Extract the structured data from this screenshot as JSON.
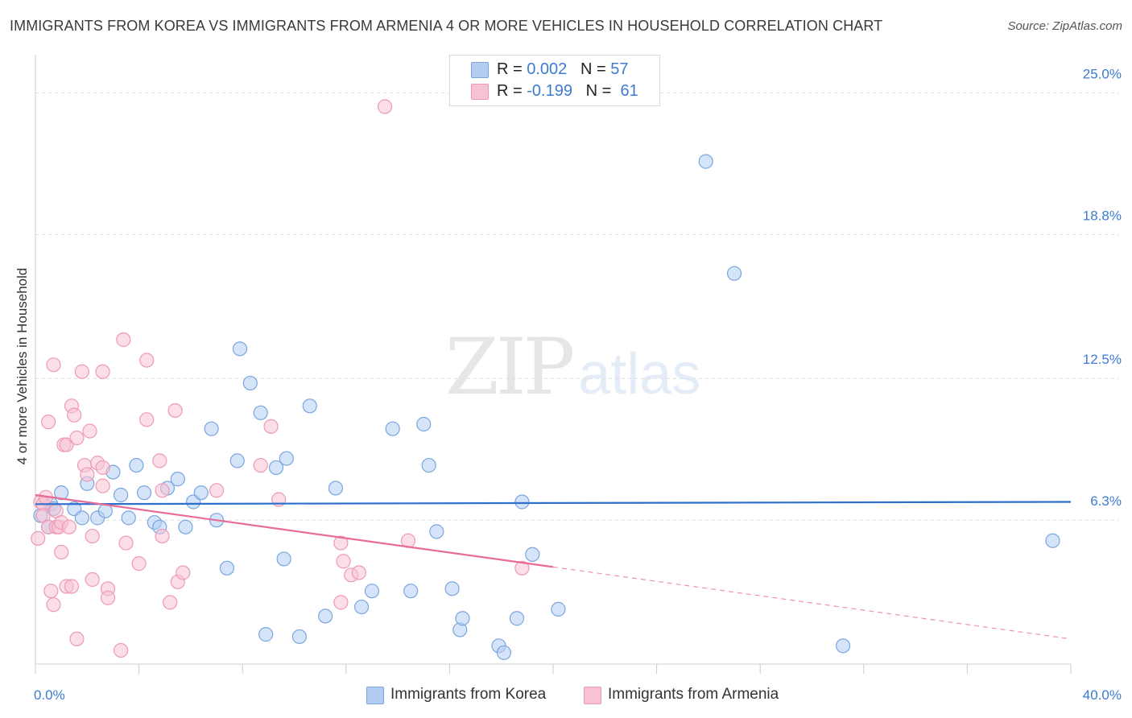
{
  "header": {
    "title": "IMMIGRANTS FROM KOREA VS IMMIGRANTS FROM ARMENIA 4 OR MORE VEHICLES IN HOUSEHOLD CORRELATION CHART",
    "source": "Source: ZipAtlas.com"
  },
  "watermark": {
    "zip": "ZIP",
    "atlas": "atlas"
  },
  "colors": {
    "korea_fill": "#b3cdf2",
    "korea_stroke": "#7aa6e0",
    "korea_line": "#2f6fcc",
    "armenia_fill": "#f7c3d3",
    "armenia_stroke": "#ee9ab5",
    "armenia_line": "#e86b99",
    "tick_text": "#3d7bd1",
    "grid": "#dddddd"
  },
  "legend": {
    "korea": {
      "r_label": "R = ",
      "r_value": "0.002",
      "n_label": "N = ",
      "n_value": "57"
    },
    "armenia": {
      "r_label": "R = ",
      "r_value": "-0.199",
      "n_label": "N = ",
      "n_value": "61"
    }
  },
  "bottom_legend": {
    "korea": "Immigrants from Korea",
    "armenia": "Immigrants from Armenia"
  },
  "chart_data": {
    "type": "scatter",
    "title": "IMMIGRANTS FROM KOREA VS IMMIGRANTS FROM ARMENIA 4 OR MORE VEHICLES IN HOUSEHOLD CORRELATION CHART",
    "xlabel": "",
    "ylabel": "4 or more Vehicles in Household",
    "xlim": [
      0,
      40
    ],
    "ylim": [
      0,
      26.25
    ],
    "x_tick_labels": [
      {
        "value": 0,
        "label": "0.0%"
      },
      {
        "value": 40,
        "label": "40.0%"
      }
    ],
    "y_tick_labels": [
      {
        "value": 6.3,
        "label": "6.3%"
      },
      {
        "value": 12.5,
        "label": "12.5%"
      },
      {
        "value": 18.8,
        "label": "18.8%"
      },
      {
        "value": 25.0,
        "label": "25.0%"
      }
    ],
    "series": [
      {
        "name": "Immigrants from Korea",
        "color": "#b3cdf2",
        "trend": {
          "x": [
            0,
            40
          ],
          "y": [
            7.0,
            7.1
          ],
          "dashed_from": null
        },
        "points": [
          [
            0.2,
            6.5
          ],
          [
            0.5,
            6.0
          ],
          [
            0.6,
            7.0
          ],
          [
            0.7,
            6.8
          ],
          [
            1.0,
            7.5
          ],
          [
            1.5,
            6.8
          ],
          [
            1.8,
            6.4
          ],
          [
            2.0,
            7.9
          ],
          [
            2.4,
            6.4
          ],
          [
            2.7,
            6.7
          ],
          [
            3.0,
            8.4
          ],
          [
            3.3,
            7.4
          ],
          [
            3.6,
            6.4
          ],
          [
            3.9,
            8.7
          ],
          [
            4.2,
            7.5
          ],
          [
            4.6,
            6.2
          ],
          [
            4.8,
            6.0
          ],
          [
            5.1,
            7.7
          ],
          [
            5.5,
            8.1
          ],
          [
            5.8,
            6.0
          ],
          [
            6.1,
            7.1
          ],
          [
            6.4,
            7.5
          ],
          [
            6.8,
            10.3
          ],
          [
            7.0,
            6.3
          ],
          [
            7.4,
            4.2
          ],
          [
            7.8,
            8.9
          ],
          [
            7.9,
            13.8
          ],
          [
            8.3,
            12.3
          ],
          [
            8.7,
            11.0
          ],
          [
            8.9,
            1.3
          ],
          [
            9.3,
            8.6
          ],
          [
            9.6,
            4.6
          ],
          [
            9.7,
            9.0
          ],
          [
            10.2,
            1.2
          ],
          [
            10.6,
            11.3
          ],
          [
            11.2,
            2.1
          ],
          [
            11.6,
            7.7
          ],
          [
            12.6,
            2.5
          ],
          [
            13.0,
            3.2
          ],
          [
            13.8,
            10.3
          ],
          [
            14.5,
            3.2
          ],
          [
            15.0,
            10.5
          ],
          [
            15.2,
            8.7
          ],
          [
            15.5,
            5.8
          ],
          [
            16.1,
            3.3
          ],
          [
            16.4,
            1.5
          ],
          [
            16.5,
            2.0
          ],
          [
            17.9,
            0.8
          ],
          [
            18.1,
            0.5
          ],
          [
            18.6,
            2.0
          ],
          [
            18.8,
            7.1
          ],
          [
            19.2,
            4.8
          ],
          [
            20.2,
            2.4
          ],
          [
            25.9,
            22.0
          ],
          [
            27.0,
            17.1
          ],
          [
            31.2,
            0.8
          ],
          [
            39.3,
            5.4
          ]
        ]
      },
      {
        "name": "Immigrants from Armenia",
        "color": "#f7c3d3",
        "trend": {
          "x": [
            0,
            40
          ],
          "y": [
            7.4,
            1.1
          ],
          "dashed_from": 20
        },
        "points": [
          [
            0.1,
            5.5
          ],
          [
            0.2,
            7.1
          ],
          [
            0.3,
            7.0
          ],
          [
            0.3,
            6.5
          ],
          [
            0.4,
            7.3
          ],
          [
            0.5,
            6.0
          ],
          [
            0.5,
            10.6
          ],
          [
            0.6,
            3.2
          ],
          [
            0.7,
            2.6
          ],
          [
            0.7,
            13.1
          ],
          [
            0.8,
            6.0
          ],
          [
            0.8,
            6.7
          ],
          [
            0.9,
            6.0
          ],
          [
            1.0,
            6.2
          ],
          [
            1.0,
            4.9
          ],
          [
            1.1,
            9.6
          ],
          [
            1.2,
            3.4
          ],
          [
            1.2,
            9.6
          ],
          [
            1.3,
            6.0
          ],
          [
            1.4,
            11.3
          ],
          [
            1.4,
            3.4
          ],
          [
            1.5,
            10.9
          ],
          [
            1.6,
            9.9
          ],
          [
            1.6,
            1.1
          ],
          [
            1.8,
            12.8
          ],
          [
            1.9,
            8.7
          ],
          [
            2.0,
            8.3
          ],
          [
            2.1,
            10.2
          ],
          [
            2.2,
            3.7
          ],
          [
            2.2,
            5.6
          ],
          [
            2.4,
            8.8
          ],
          [
            2.6,
            8.6
          ],
          [
            2.6,
            12.8
          ],
          [
            2.6,
            7.8
          ],
          [
            2.8,
            3.3
          ],
          [
            2.8,
            2.9
          ],
          [
            3.3,
            0.6
          ],
          [
            3.4,
            14.2
          ],
          [
            3.5,
            5.3
          ],
          [
            4.0,
            4.4
          ],
          [
            4.3,
            10.7
          ],
          [
            4.3,
            13.3
          ],
          [
            4.8,
            8.9
          ],
          [
            4.9,
            7.6
          ],
          [
            4.9,
            5.6
          ],
          [
            5.2,
            2.7
          ],
          [
            5.4,
            11.1
          ],
          [
            5.5,
            3.6
          ],
          [
            5.7,
            4.0
          ],
          [
            7.0,
            7.6
          ],
          [
            8.7,
            8.7
          ],
          [
            9.1,
            10.4
          ],
          [
            9.4,
            7.2
          ],
          [
            11.8,
            5.3
          ],
          [
            11.8,
            2.7
          ],
          [
            11.9,
            4.5
          ],
          [
            12.2,
            3.9
          ],
          [
            12.5,
            4.0
          ],
          [
            14.4,
            5.4
          ],
          [
            18.8,
            4.2
          ],
          [
            13.5,
            24.4
          ]
        ]
      }
    ]
  }
}
